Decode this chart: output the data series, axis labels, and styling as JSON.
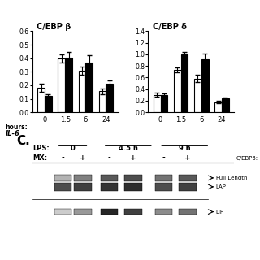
{
  "beta_white": [
    0.18,
    0.4,
    0.31,
    0.155
  ],
  "beta_black": [
    0.12,
    0.405,
    0.37,
    0.21
  ],
  "beta_white_err": [
    0.03,
    0.03,
    0.03,
    0.02
  ],
  "beta_black_err": [
    0.015,
    0.04,
    0.05,
    0.025
  ],
  "beta_ylim": [
    0,
    0.6
  ],
  "beta_yticks": [
    0,
    0.1,
    0.2,
    0.3,
    0.4,
    0.5,
    0.6
  ],
  "beta_title": "C/EBP β",
  "delta_white": [
    0.305,
    0.73,
    0.585,
    0.175
  ],
  "delta_black": [
    0.3,
    1.0,
    0.92,
    0.235
  ],
  "delta_white_err": [
    0.03,
    0.04,
    0.06,
    0.02
  ],
  "delta_black_err": [
    0.025,
    0.04,
    0.1,
    0.025
  ],
  "delta_ylim": [
    0,
    1.4
  ],
  "delta_yticks": [
    0,
    0.2,
    0.4,
    0.6,
    0.8,
    1.0,
    1.2,
    1.4
  ],
  "delta_title": "C/EBP δ",
  "x_labels": [
    "0",
    "1.5",
    "6",
    "24"
  ],
  "xlabel_hours": "hours:",
  "xlabel_IL6": "IL-6",
  "bar_width": 0.35,
  "bg_color": "#ffffff",
  "western_title": "C.",
  "lps_label": "LPS:",
  "lps_timepoints": [
    "0",
    "4.5 h",
    "9 h"
  ],
  "mx_label": "MX:",
  "mx_signs": [
    "-",
    "+",
    "-",
    "+",
    "-",
    "+"
  ],
  "cebpb_label": "C/EBPβ:",
  "band_labels": [
    "Full Length",
    "LAP",
    "LIP"
  ],
  "num_lanes": 6
}
